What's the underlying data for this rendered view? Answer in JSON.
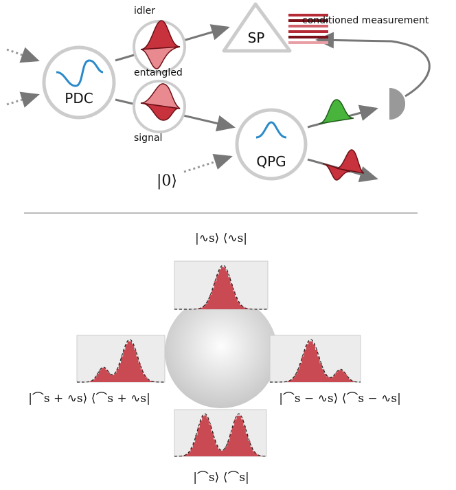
{
  "diagram": {
    "labels": {
      "idler": "idler",
      "entangled": "entangled",
      "signal": "signal",
      "pdc": "PDC",
      "sp": "SP",
      "qpg": "QPG",
      "vacuum": "|0⟩",
      "conditioned": "conditioned measurement"
    },
    "bloch": {
      "top": "|∿s⟩ ⟨∿s|",
      "left": "|⌒s + ∿s⟩ ⟨⌒s + ∿s|",
      "right": "|⌒s − ∿s⟩ ⟨⌒s − ∿s|",
      "bottom": "|⌒s⟩ ⟨⌒s|"
    }
  }
}
